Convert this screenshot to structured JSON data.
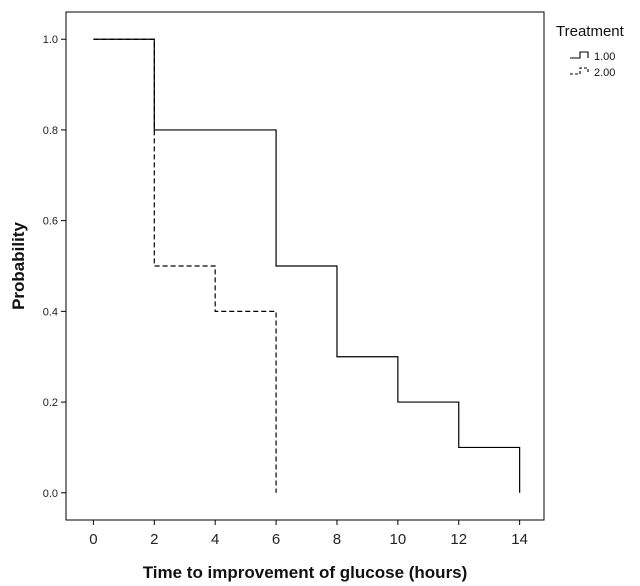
{
  "chart_data": {
    "type": "line",
    "subtype": "step",
    "title": "",
    "xlabel": "Time to improvement of glucose (hours)",
    "ylabel": "Probability",
    "xlim": [
      -0.9,
      14.8
    ],
    "ylim": [
      -0.06,
      1.06
    ],
    "x_ticks": [
      0,
      2,
      4,
      6,
      8,
      10,
      12,
      14
    ],
    "y_ticks": [
      0.0,
      0.2,
      0.4,
      0.6,
      0.8,
      1.0
    ],
    "x_tick_labels": [
      "0",
      "2",
      "4",
      "6",
      "8",
      "10",
      "12",
      "14"
    ],
    "y_tick_labels": [
      "0.0",
      "0.2",
      "0.4",
      "0.6",
      "0.8",
      "1.0"
    ],
    "grid": false,
    "legend": {
      "title": "Treatment",
      "placement": "right-outside-top"
    },
    "series": [
      {
        "name": "1.00",
        "style": "solid",
        "color": "#000000",
        "points": [
          [
            0,
            1.0
          ],
          [
            2,
            0.8
          ],
          [
            6,
            0.5
          ],
          [
            8,
            0.3
          ],
          [
            10,
            0.2
          ],
          [
            12,
            0.1
          ],
          [
            14,
            0.0
          ]
        ]
      },
      {
        "name": "2.00",
        "style": "dashed",
        "color": "#000000",
        "points": [
          [
            0,
            1.0
          ],
          [
            2,
            0.5
          ],
          [
            4,
            0.4
          ],
          [
            6,
            0.0
          ]
        ]
      }
    ]
  }
}
